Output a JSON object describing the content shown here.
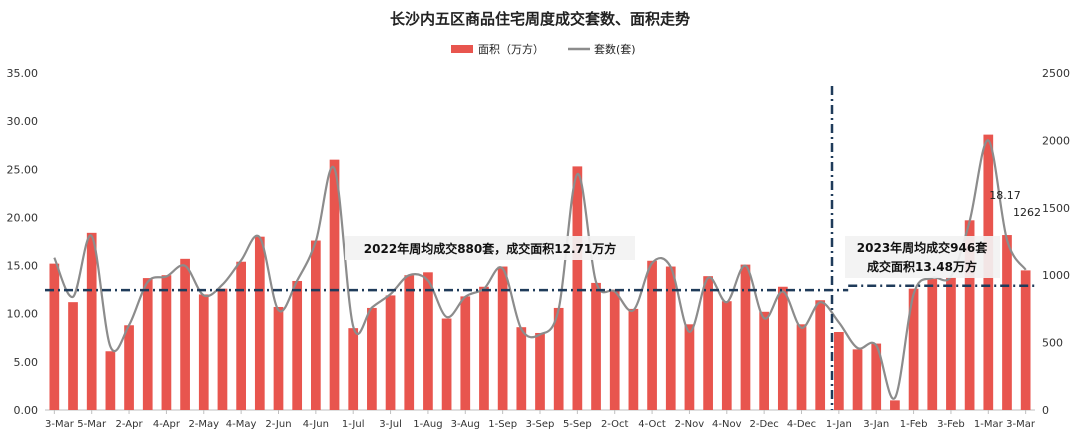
{
  "chart_data": {
    "type": "bar",
    "title": "长沙内五区商品住宅周度成交套数、面积走势",
    "legend": [
      {
        "name": "面积（万方）",
        "color": "#E8554E",
        "kind": "bar"
      },
      {
        "name": "套数(套)",
        "color": "#8C8C8C",
        "kind": "line"
      }
    ],
    "legend_position": "top-center",
    "grid": false,
    "x_tick_labels": [
      "3-Mar",
      "5-Mar",
      "2-Apr",
      "4-Apr",
      "2-May",
      "4-May",
      "2-Jun",
      "4-Jun",
      "1-Jul",
      "3-Jul",
      "1-Aug",
      "3-Aug",
      "1-Sep",
      "3-Sep",
      "5-Sep",
      "2-Oct",
      "4-Oct",
      "2-Nov",
      "4-Nov",
      "2-Dec",
      "4-Dec",
      "1-Jan",
      "3-Jan",
      "1-Feb",
      "3-Feb",
      "1-Mar",
      "3-Mar"
    ],
    "y_left": {
      "ticks": [
        "0.00",
        "5.00",
        "10.00",
        "15.00",
        "20.00",
        "25.00",
        "30.00",
        "35.00"
      ],
      "range": [
        0,
        35
      ]
    },
    "y_right": {
      "ticks": [
        "0",
        "500",
        "1000",
        "1500",
        "2000",
        "2500"
      ],
      "range": [
        0,
        2500
      ]
    },
    "series": [
      {
        "name": "面积（万方）",
        "axis": "left",
        "values": [
          15.2,
          11.2,
          18.4,
          6.1,
          8.8,
          13.7,
          14.0,
          15.7,
          12.0,
          12.6,
          15.4,
          18.0,
          10.7,
          13.4,
          17.6,
          26.0,
          8.5,
          10.6,
          11.9,
          14.0,
          14.3,
          9.5,
          11.8,
          12.8,
          14.9,
          8.6,
          8.0,
          10.6,
          25.3,
          13.2,
          12.5,
          10.5,
          15.5,
          14.9,
          8.9,
          13.9,
          11.3,
          15.1,
          10.2,
          12.8,
          8.9,
          11.4,
          8.1,
          6.3,
          6.9,
          1.0,
          12.6,
          13.6,
          13.8,
          19.7,
          28.6,
          18.17,
          14.5
        ]
      },
      {
        "name": "套数(套)",
        "axis": "right",
        "values": [
          1130,
          840,
          1290,
          470,
          630,
          950,
          990,
          1070,
          850,
          930,
          1110,
          1280,
          740,
          960,
          1250,
          1790,
          620,
          760,
          860,
          1000,
          960,
          690,
          840,
          900,
          1050,
          600,
          560,
          750,
          1750,
          950,
          880,
          740,
          1090,
          1060,
          580,
          980,
          800,
          1070,
          680,
          880,
          610,
          800,
          650,
          460,
          480,
          90,
          860,
          980,
          990,
          1400,
          2000,
          1262,
          1040
        ]
      }
    ],
    "data_labels": [
      {
        "series": "面积（万方）",
        "index": 51,
        "text": "18.17"
      },
      {
        "series": "套数(套)",
        "index": 51,
        "text": "1262"
      }
    ],
    "reference_lines": [
      {
        "axis": "left",
        "value": 12.45,
        "from_index": 0,
        "to_index": 42
      },
      {
        "axis": "left",
        "value": 12.9,
        "from_index": 43,
        "to_index": 52
      }
    ],
    "annotations": [
      {
        "text": "2022年周均成交880套，成交面积12.71万方"
      },
      {
        "text": "2023年周均成交946套"
      },
      {
        "text": "成交面积13.48万方"
      }
    ]
  }
}
